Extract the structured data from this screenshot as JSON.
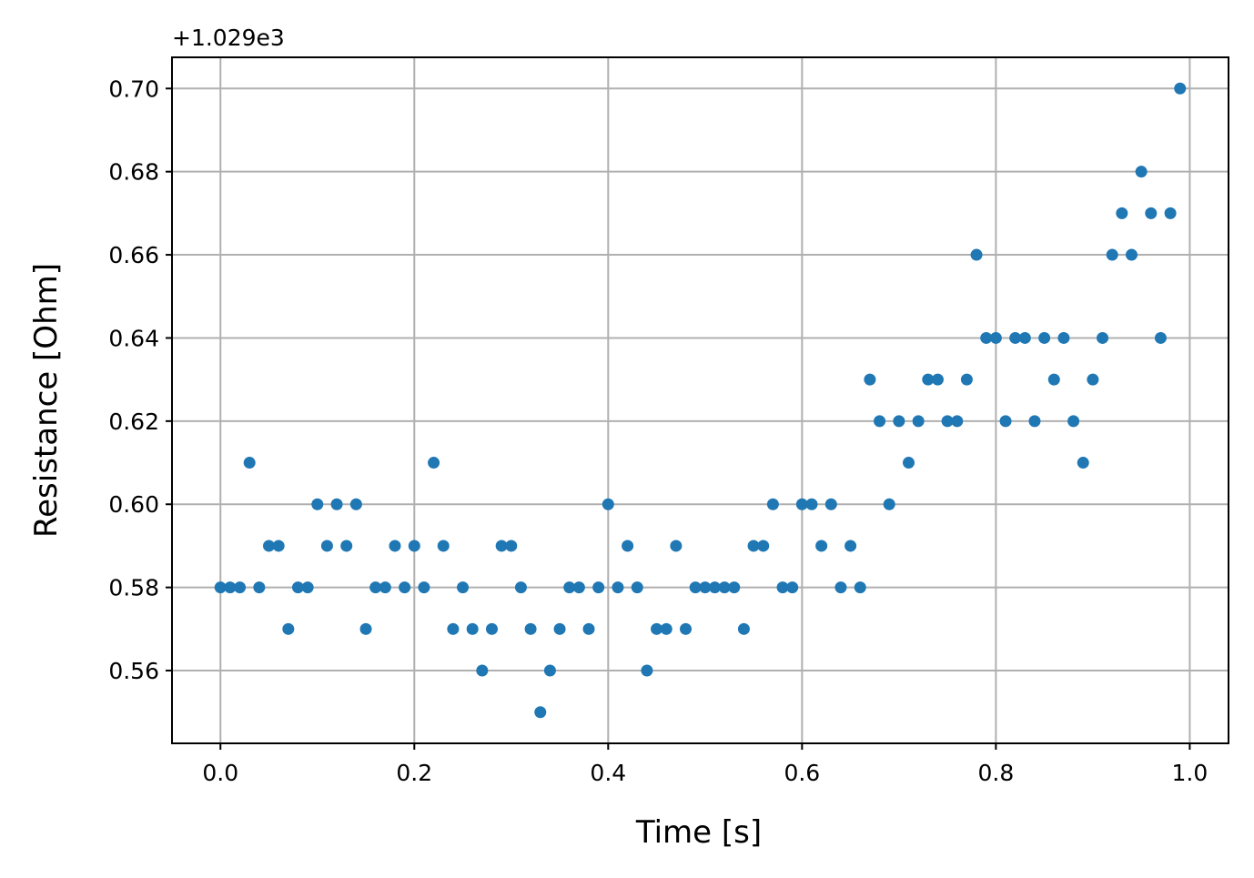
{
  "chart_data": {
    "type": "scatter",
    "offset_text": "+1.029e3",
    "xlabel": "Time [s]",
    "ylabel": "Resistance [Ohm]",
    "xlim": [
      -0.05,
      1.04
    ],
    "ylim": [
      0.5425,
      0.7075
    ],
    "x_ticks": [
      0.0,
      0.2,
      0.4,
      0.6,
      0.8,
      1.0
    ],
    "x_tick_labels": [
      "0.0",
      "0.2",
      "0.4",
      "0.6",
      "0.8",
      "1.0"
    ],
    "y_ticks": [
      0.56,
      0.58,
      0.6,
      0.62,
      0.64,
      0.66,
      0.68,
      0.7
    ],
    "y_tick_labels": [
      "0.56",
      "0.58",
      "0.60",
      "0.62",
      "0.64",
      "0.66",
      "0.68",
      "0.70"
    ],
    "grid": true,
    "marker_color": "#1f77b4",
    "grid_color": "#b0b0b0",
    "x": [
      0.0,
      0.01,
      0.02,
      0.03,
      0.04,
      0.05,
      0.06,
      0.07,
      0.08,
      0.09,
      0.1,
      0.11,
      0.12,
      0.13,
      0.14,
      0.15,
      0.16,
      0.17,
      0.18,
      0.19,
      0.2,
      0.21,
      0.22,
      0.23,
      0.24,
      0.25,
      0.26,
      0.27,
      0.28,
      0.29,
      0.3,
      0.31,
      0.32,
      0.33,
      0.34,
      0.35,
      0.36,
      0.37,
      0.38,
      0.39,
      0.4,
      0.41,
      0.42,
      0.43,
      0.44,
      0.45,
      0.46,
      0.47,
      0.48,
      0.49,
      0.5,
      0.51,
      0.52,
      0.53,
      0.54,
      0.55,
      0.56,
      0.57,
      0.58,
      0.59,
      0.6,
      0.61,
      0.62,
      0.63,
      0.64,
      0.65,
      0.66,
      0.67,
      0.68,
      0.69,
      0.7,
      0.71,
      0.72,
      0.73,
      0.74,
      0.75,
      0.76,
      0.77,
      0.78,
      0.79,
      0.8,
      0.81,
      0.82,
      0.83,
      0.84,
      0.85,
      0.86,
      0.87,
      0.88,
      0.89,
      0.9,
      0.91,
      0.92,
      0.93,
      0.94,
      0.95,
      0.96,
      0.97,
      0.98,
      0.99
    ],
    "y": [
      0.58,
      0.58,
      0.58,
      0.61,
      0.58,
      0.59,
      0.59,
      0.57,
      0.58,
      0.58,
      0.6,
      0.59,
      0.6,
      0.59,
      0.6,
      0.57,
      0.58,
      0.58,
      0.59,
      0.58,
      0.59,
      0.58,
      0.61,
      0.59,
      0.57,
      0.58,
      0.57,
      0.56,
      0.57,
      0.59,
      0.59,
      0.58,
      0.57,
      0.55,
      0.56,
      0.57,
      0.58,
      0.58,
      0.57,
      0.58,
      0.6,
      0.58,
      0.59,
      0.58,
      0.56,
      0.57,
      0.57,
      0.59,
      0.57,
      0.58,
      0.58,
      0.58,
      0.58,
      0.58,
      0.57,
      0.59,
      0.59,
      0.6,
      0.58,
      0.58,
      0.6,
      0.6,
      0.59,
      0.6,
      0.58,
      0.59,
      0.58,
      0.63,
      0.62,
      0.6,
      0.62,
      0.61,
      0.62,
      0.63,
      0.63,
      0.62,
      0.62,
      0.63,
      0.66,
      0.64,
      0.64,
      0.62,
      0.64,
      0.64,
      0.62,
      0.64,
      0.63,
      0.64,
      0.62,
      0.61,
      0.63,
      0.64,
      0.66,
      0.67,
      0.66,
      0.68,
      0.67,
      0.64,
      0.67,
      0.7
    ]
  }
}
